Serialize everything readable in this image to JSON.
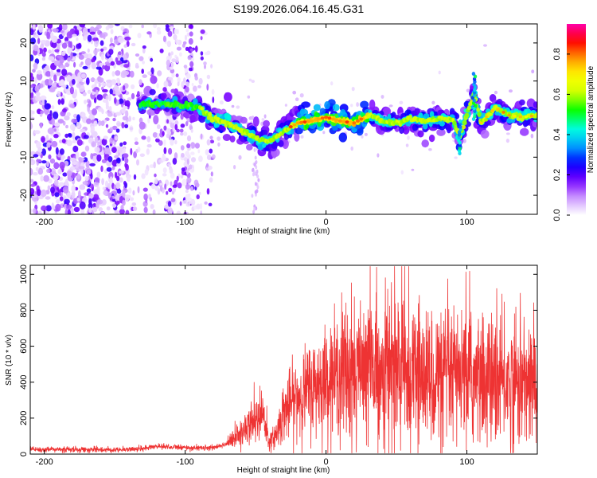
{
  "title": "S199.2026.064.16.45.G31",
  "chart_data": [
    {
      "type": "heatmap",
      "xlabel": "Height of straight line (km)",
      "ylabel": "Frequency (Hz)",
      "xlim": [
        -210,
        150
      ],
      "ylim": [
        -25,
        25
      ],
      "xticks": [
        -200,
        -100,
        0,
        100
      ],
      "yticks": [
        -20,
        -10,
        0,
        10,
        20
      ],
      "colorbar": {
        "label": "Normalized spectral amplitude",
        "range": [
          0,
          0.95
        ],
        "ticks": [
          0.0,
          0.2,
          0.4,
          0.6,
          0.8
        ],
        "colors": [
          "#ffffff",
          "#cc99ff",
          "#7700ff",
          "#0000ff",
          "#00aaff",
          "#00ffdd",
          "#00ff00",
          "#ccff00",
          "#ffff00",
          "#ff9900",
          "#ff0000",
          "#ff00aa"
        ]
      },
      "ridge": [
        {
          "x": -130,
          "y": 4
        },
        {
          "x": -115,
          "y": 4
        },
        {
          "x": -100,
          "y": 3.5
        },
        {
          "x": -90,
          "y": 3
        },
        {
          "x": -80,
          "y": 0
        },
        {
          "x": -70,
          "y": -1
        },
        {
          "x": -60,
          "y": -3
        },
        {
          "x": -50,
          "y": -5
        },
        {
          "x": -40,
          "y": -6
        },
        {
          "x": -30,
          "y": -3
        },
        {
          "x": -20,
          "y": -1
        },
        {
          "x": -10,
          "y": -0.5
        },
        {
          "x": 0,
          "y": 0.5
        },
        {
          "x": 10,
          "y": -0.5
        },
        {
          "x": 20,
          "y": -1
        },
        {
          "x": 30,
          "y": 1
        },
        {
          "x": 40,
          "y": -0.5
        },
        {
          "x": 50,
          "y": -1
        },
        {
          "x": 60,
          "y": 0
        },
        {
          "x": 70,
          "y": -0.5
        },
        {
          "x": 80,
          "y": 0
        },
        {
          "x": 90,
          "y": 0
        },
        {
          "x": 95,
          "y": -5
        },
        {
          "x": 100,
          "y": 1
        },
        {
          "x": 105,
          "y": 7
        },
        {
          "x": 110,
          "y": -1
        },
        {
          "x": 120,
          "y": 3
        },
        {
          "x": 130,
          "y": 1
        },
        {
          "x": 140,
          "y": 0.5
        },
        {
          "x": 150,
          "y": 1
        }
      ]
    },
    {
      "type": "line",
      "xlabel": "Height of straight line (km)",
      "ylabel": "SNR (10 * v/v)",
      "xlim": [
        -210,
        150
      ],
      "ylim": [
        0,
        1050
      ],
      "xticks": [
        -200,
        -100,
        0,
        100
      ],
      "yticks": [
        0,
        200,
        400,
        600,
        800,
        1000
      ],
      "color": "#ee3333",
      "envelope": [
        {
          "x": -210,
          "y": 25
        },
        {
          "x": -150,
          "y": 25
        },
        {
          "x": -130,
          "y": 30
        },
        {
          "x": -120,
          "y": 45
        },
        {
          "x": -100,
          "y": 35
        },
        {
          "x": -80,
          "y": 35
        },
        {
          "x": -70,
          "y": 60
        },
        {
          "x": -60,
          "y": 120
        },
        {
          "x": -50,
          "y": 180
        },
        {
          "x": -45,
          "y": 200
        },
        {
          "x": -40,
          "y": 60
        },
        {
          "x": -35,
          "y": 120
        },
        {
          "x": -30,
          "y": 240
        },
        {
          "x": -20,
          "y": 320
        },
        {
          "x": -10,
          "y": 370
        },
        {
          "x": 0,
          "y": 420
        },
        {
          "x": 10,
          "y": 450
        },
        {
          "x": 20,
          "y": 460
        },
        {
          "x": 30,
          "y": 480
        },
        {
          "x": 40,
          "y": 480
        },
        {
          "x": 60,
          "y": 450
        },
        {
          "x": 80,
          "y": 430
        },
        {
          "x": 100,
          "y": 420
        },
        {
          "x": 120,
          "y": 400
        },
        {
          "x": 150,
          "y": 390
        }
      ]
    }
  ]
}
